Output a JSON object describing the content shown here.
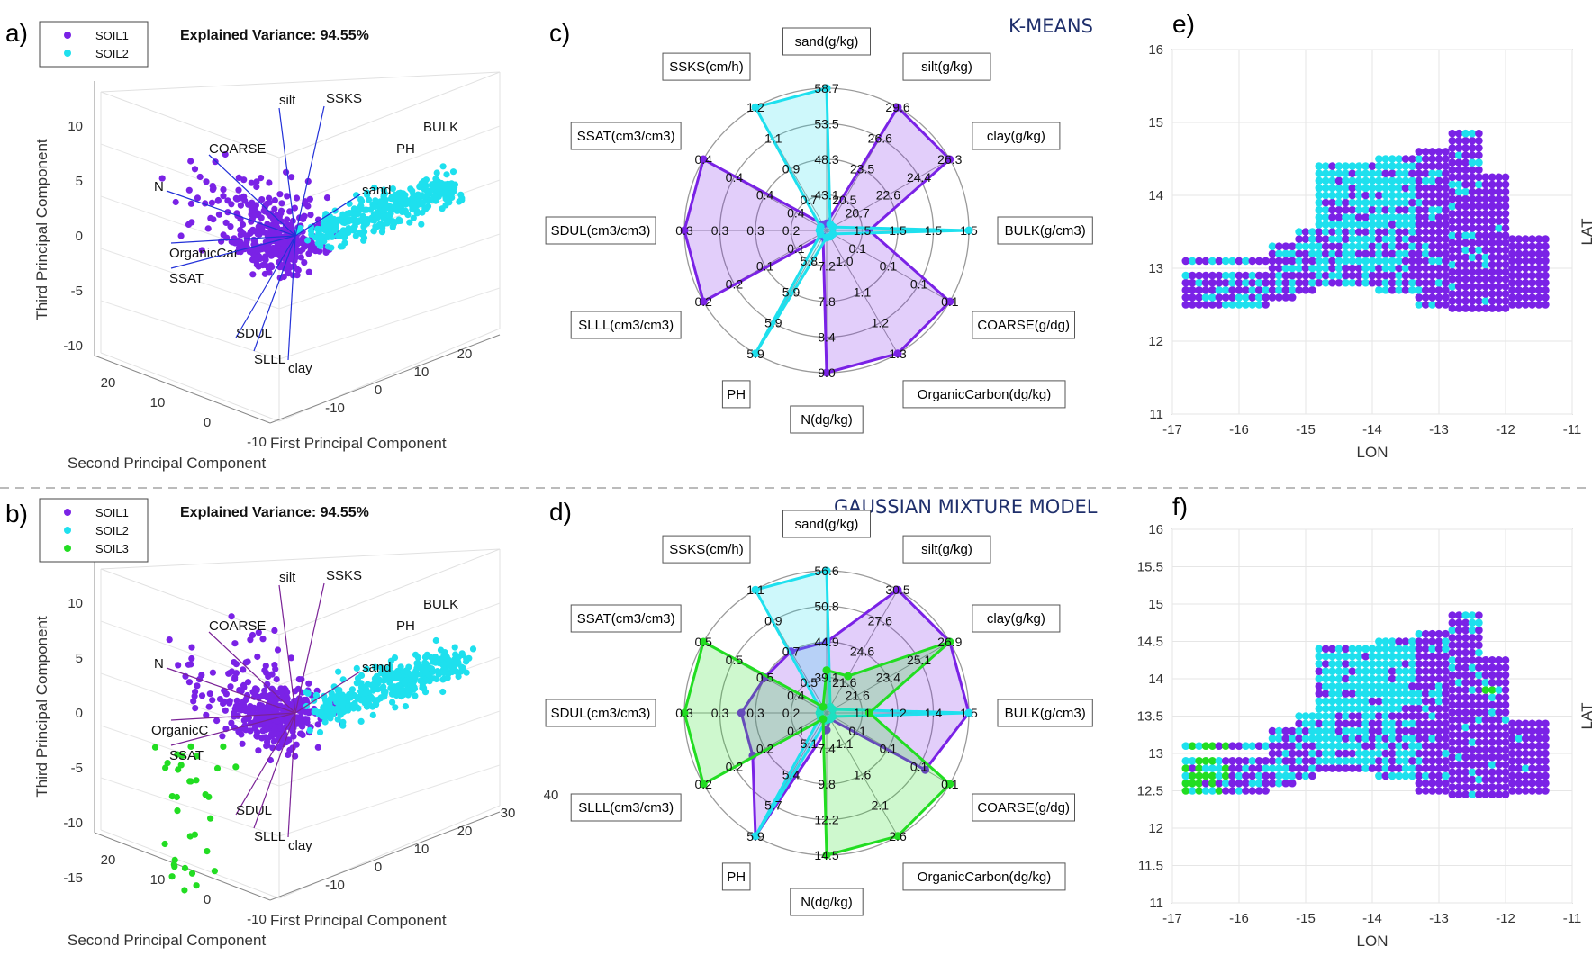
{
  "colors": {
    "soil1": "#7a22e6",
    "soil2": "#1ee0ee",
    "soil3": "#22dd22",
    "grid": "#e6e6e6",
    "axis": "#555555",
    "method_text": "#1f2f6b",
    "loading_line_a": "#2230d8",
    "loading_line_b": "#7a2296"
  },
  "panels": {
    "a": "a)",
    "b": "b)",
    "c": "c)",
    "d": "d)",
    "e": "e)",
    "f": "f)"
  },
  "methods": {
    "kmeans": "K-MEANS",
    "gmm": "GAUSSIAN MIXTURE MODEL"
  },
  "chart_data": [
    {
      "id": "a",
      "type": "scatter",
      "subtype": "3d-pca-biplot",
      "title": "Explained Variance: 94.55%",
      "legend": [
        "SOIL1",
        "SOIL2"
      ],
      "xlabel": "First Principal Component",
      "ylabel": "Second Principal Component",
      "zlabel": "Third Principal Component",
      "x_ticks": [
        "-10",
        "0",
        "10",
        "20"
      ],
      "y_ticks": [
        "20",
        "10",
        "0",
        "-10"
      ],
      "z_ticks": [
        "10",
        "5",
        "0",
        "-5",
        "-10"
      ],
      "loadings": [
        "silt",
        "SSKS",
        "COARSE",
        "BULK",
        "PH",
        "N",
        "sand",
        "OrganicCar",
        "SSAT",
        "SDUL",
        "SLLL",
        "clay"
      ]
    },
    {
      "id": "b",
      "type": "scatter",
      "subtype": "3d-pca-biplot",
      "title": "Explained Variance: 94.55%",
      "legend": [
        "SOIL1",
        "SOIL2",
        "SOIL3"
      ],
      "xlabel": "First Principal Component",
      "ylabel": "Second Principal Component",
      "zlabel": "Third Principal Component",
      "x_ticks": [
        "-10",
        "0",
        "10",
        "20",
        "30",
        "40"
      ],
      "y_ticks": [
        "20",
        "10",
        "0",
        "-10"
      ],
      "z_ticks": [
        "10",
        "5",
        "0",
        "-5",
        "-10",
        "-15"
      ],
      "loadings": [
        "silt",
        "SSKS",
        "COARSE",
        "BULK",
        "PH",
        "N",
        "sand",
        "OrganicC",
        "SSAT",
        "SDUL",
        "SLLL",
        "clay"
      ]
    },
    {
      "id": "c",
      "type": "radar",
      "variables": [
        "sand(g/kg)",
        "silt(g/kg)",
        "clay(g/kg)",
        "BULK(g/cm3)",
        "COARSE(g/dg)",
        "OrganicCarbon(dg/kg)",
        "N(dg/kg)",
        "PH",
        "SLLL(cm3/cm3)",
        "SDUL(cm3/cm3)",
        "SSAT(cm3/cm3)",
        "SSKS(cm/h)"
      ],
      "rings": 4,
      "ring_labels": [
        [
          "43.1",
          "48.3",
          "53.5",
          "58.7"
        ],
        [
          "20.5",
          "23.5",
          "26.6",
          "29.6"
        ],
        [
          "20.7",
          "22.6",
          "24.4",
          "26.3"
        ],
        [
          "1.5",
          "1.5",
          "1.5",
          "1.5"
        ],
        [
          "0.1",
          "0.1",
          "0.1",
          "0.1"
        ],
        [
          "1.0",
          "1.1",
          "1.2",
          "1.3"
        ],
        [
          "7.2",
          "7.8",
          "8.4",
          "9.0"
        ],
        [
          "5.8",
          "5.9",
          "5.9",
          "5.9"
        ],
        [
          "0.1",
          "0.1",
          "0.2",
          "0.2"
        ],
        [
          "0.2",
          "0.3",
          "0.3",
          "0.3"
        ],
        [
          "0.4",
          "0.4",
          "0.4",
          "0.4"
        ],
        [
          "0.7",
          "0.9",
          "1.1",
          "1.2"
        ]
      ],
      "series": [
        {
          "name": "SOIL1",
          "values": [
            0.05,
            1.0,
            1.0,
            0.3,
            1.0,
            1.0,
            1.0,
            0.05,
            1.0,
            1.0,
            1.0,
            0.05
          ]
        },
        {
          "name": "SOIL2",
          "values": [
            1.0,
            0.05,
            0.05,
            1.0,
            0.05,
            0.05,
            0.05,
            1.0,
            0.05,
            0.05,
            0.05,
            1.0
          ]
        }
      ]
    },
    {
      "id": "d",
      "type": "radar",
      "variables": [
        "sand(g/kg)",
        "silt(g/kg)",
        "clay(g/kg)",
        "BULK(g/cm3)",
        "COARSE(g/dg)",
        "OrganicCarbon(dg/kg)",
        "N(dg/kg)",
        "PH",
        "SLLL(cm3/cm3)",
        "SDUL(cm3/cm3)",
        "SSAT(cm3/cm3)",
        "SSKS(cm/h)"
      ],
      "rings": 4,
      "ring_labels": [
        [
          "39.1",
          "44.9",
          "50.8",
          "56.6"
        ],
        [
          "21.6",
          "24.6",
          "27.6",
          "30.5"
        ],
        [
          "21.6",
          "23.4",
          "25.1",
          "26.9"
        ],
        [
          "1.1",
          "1.2",
          "1.4",
          "1.5"
        ],
        [
          "0.1",
          "0.1",
          "0.1",
          "0.1"
        ],
        [
          "1.1",
          "1.6",
          "2.1",
          "2.6"
        ],
        [
          "7.4",
          "9.8",
          "12.2",
          "14.5"
        ],
        [
          "5.1",
          "5.4",
          "5.7",
          "5.9"
        ],
        [
          "0.1",
          "0.2",
          "0.2",
          "0.2"
        ],
        [
          "0.2",
          "0.3",
          "0.3",
          "0.3"
        ],
        [
          "0.4",
          "0.5",
          "0.5",
          "0.5"
        ],
        [
          "0.5",
          "0.7",
          "0.9",
          "1.1"
        ]
      ],
      "series": [
        {
          "name": "SOIL1",
          "values": [
            0.5,
            1.0,
            1.0,
            1.0,
            0.8,
            0.05,
            0.12,
            1.0,
            0.6,
            0.6,
            0.5,
            0.5
          ]
        },
        {
          "name": "SOIL2",
          "values": [
            1.0,
            0.05,
            0.05,
            1.0,
            0.05,
            0.05,
            0.05,
            1.0,
            0.05,
            0.05,
            0.05,
            1.0
          ]
        },
        {
          "name": "SOIL3",
          "values": [
            0.3,
            0.3,
            1.0,
            0.3,
            1.0,
            1.0,
            1.0,
            0.05,
            1.0,
            1.0,
            1.0,
            0.05
          ]
        }
      ]
    },
    {
      "id": "e",
      "type": "scatter",
      "subtype": "map",
      "xlabel": "LON",
      "ylabel": "LAT",
      "xlim": [
        -17,
        -11
      ],
      "ylim": [
        11,
        16
      ],
      "x_ticks": [
        "-17",
        "-16",
        "-15",
        "-14",
        "-13",
        "-12",
        "-11"
      ],
      "y_ticks": [
        "11",
        "12",
        "13",
        "14",
        "15",
        "16"
      ],
      "clusters": [
        "SOIL1",
        "SOIL2"
      ]
    },
    {
      "id": "f",
      "type": "scatter",
      "subtype": "map",
      "xlabel": "LON",
      "ylabel": "LAT",
      "xlim": [
        -17,
        -11
      ],
      "ylim": [
        11,
        16
      ],
      "x_ticks": [
        "-17",
        "-16",
        "-15",
        "-14",
        "-13",
        "-12",
        "-11"
      ],
      "y_ticks": [
        "11",
        "11.5",
        "12",
        "12.5",
        "13",
        "13.5",
        "14",
        "14.5",
        "15",
        "15.5",
        "16"
      ],
      "clusters": [
        "SOIL1",
        "SOIL2",
        "SOIL3"
      ]
    }
  ]
}
